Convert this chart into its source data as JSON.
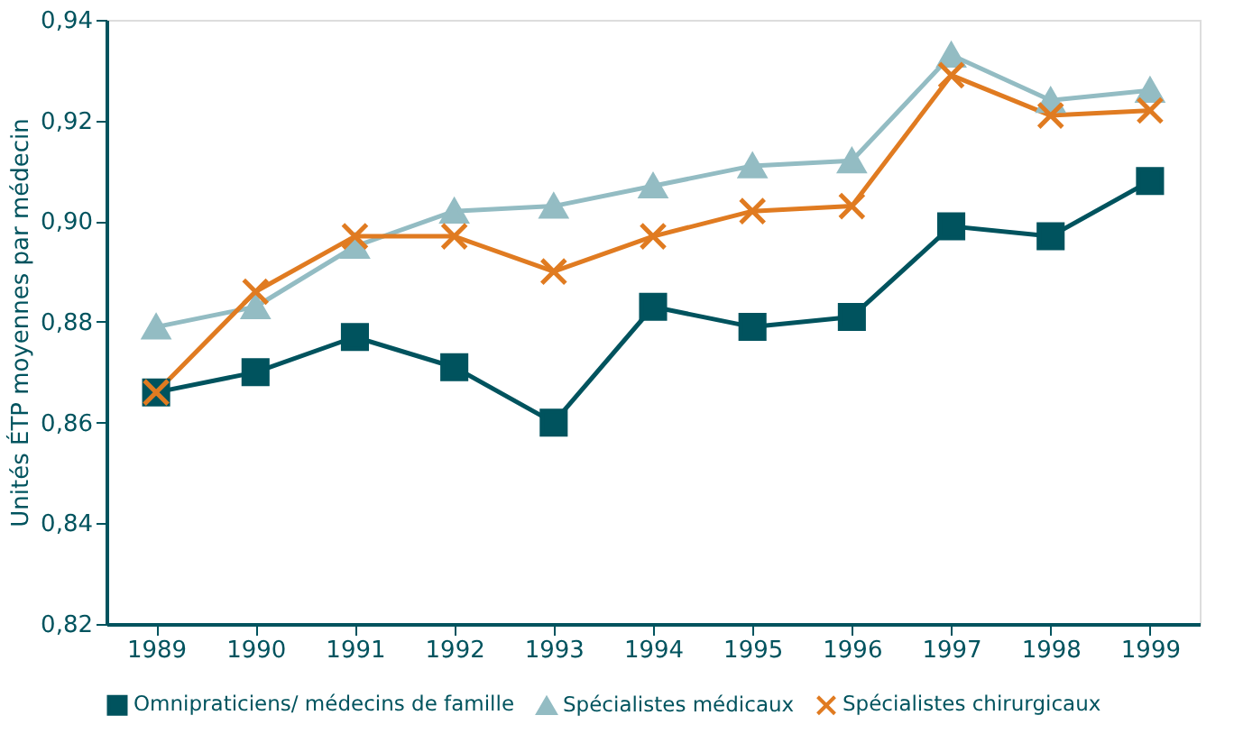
{
  "chart_data": {
    "type": "line",
    "ylabel": "Unités ÉTP moyennes par médecin",
    "categories": [
      "1989",
      "1990",
      "1991",
      "1992",
      "1993",
      "1994",
      "1995",
      "1996",
      "1997",
      "1998",
      "1999"
    ],
    "ylim": [
      0.82,
      0.94
    ],
    "yticks": [
      {
        "value": 0.82,
        "label": "0,82"
      },
      {
        "value": 0.84,
        "label": "0,84"
      },
      {
        "value": 0.86,
        "label": "0,86"
      },
      {
        "value": 0.88,
        "label": "0,88"
      },
      {
        "value": 0.9,
        "label": "0,90"
      },
      {
        "value": 0.92,
        "label": "0,92"
      },
      {
        "value": 0.94,
        "label": "0,94"
      }
    ],
    "grid": false,
    "legend": "bottom",
    "line_style": "solid",
    "series": [
      {
        "name": "Omnipraticiens/ médecins de famille",
        "color": "#00535e",
        "marker": "square",
        "values": [
          0.866,
          0.87,
          0.877,
          0.871,
          0.86,
          0.883,
          0.879,
          0.881,
          0.899,
          0.897,
          0.908
        ]
      },
      {
        "name": "Spécialistes médicaux",
        "color": "#93bcc3",
        "marker": "triangle",
        "values": [
          0.879,
          0.883,
          0.895,
          0.902,
          0.903,
          0.907,
          0.911,
          0.912,
          0.933,
          0.924,
          0.926
        ]
      },
      {
        "name": "Spécialistes chirurgicaux",
        "color": "#e07b21",
        "marker": "cross",
        "values": [
          0.866,
          0.886,
          0.897,
          0.897,
          0.89,
          0.897,
          0.902,
          0.903,
          0.929,
          0.921,
          0.922
        ]
      }
    ]
  }
}
